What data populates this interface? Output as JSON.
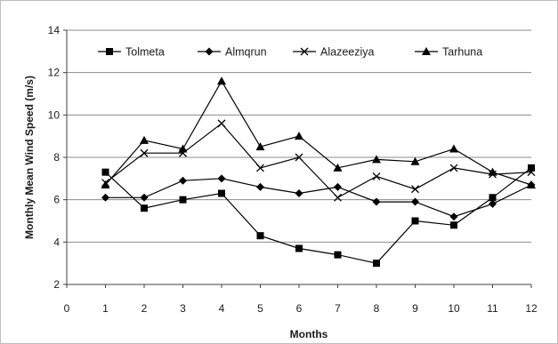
{
  "chart_data": {
    "type": "line",
    "title": "",
    "xlabel": "Months",
    "ylabel": "Monthly Mean Wind Speed (m/s)",
    "xlim": [
      0,
      12
    ],
    "ylim": [
      2,
      14
    ],
    "x_ticks": [
      "0",
      "1",
      "2",
      "3",
      "4",
      "5",
      "6",
      "7",
      "8",
      "9",
      "10",
      "11",
      "12"
    ],
    "y_ticks": [
      "2",
      "4",
      "6",
      "8",
      "10",
      "12",
      "14"
    ],
    "grid": "horizontal",
    "legend_position": "top",
    "x": [
      1,
      2,
      3,
      4,
      5,
      6,
      7,
      8,
      9,
      10,
      11,
      12
    ],
    "series": [
      {
        "name": "Tolmeta",
        "marker": "square",
        "values": [
          7.3,
          5.6,
          6.0,
          6.3,
          4.3,
          3.7,
          3.4,
          3.0,
          5.0,
          4.8,
          6.1,
          7.5
        ]
      },
      {
        "name": "Almqrun",
        "marker": "diamond",
        "values": [
          6.1,
          6.1,
          6.9,
          7.0,
          6.6,
          6.3,
          6.6,
          5.9,
          5.9,
          5.2,
          5.8,
          6.7
        ]
      },
      {
        "name": "Alazeeziya",
        "marker": "x",
        "values": [
          6.8,
          8.2,
          8.2,
          9.6,
          7.5,
          8.0,
          6.1,
          7.1,
          6.5,
          7.5,
          7.2,
          7.3
        ]
      },
      {
        "name": "Tarhuna",
        "marker": "triangle",
        "values": [
          6.7,
          8.8,
          8.4,
          11.6,
          8.5,
          9.0,
          7.5,
          7.9,
          7.8,
          8.4,
          7.3,
          6.7
        ]
      }
    ]
  }
}
